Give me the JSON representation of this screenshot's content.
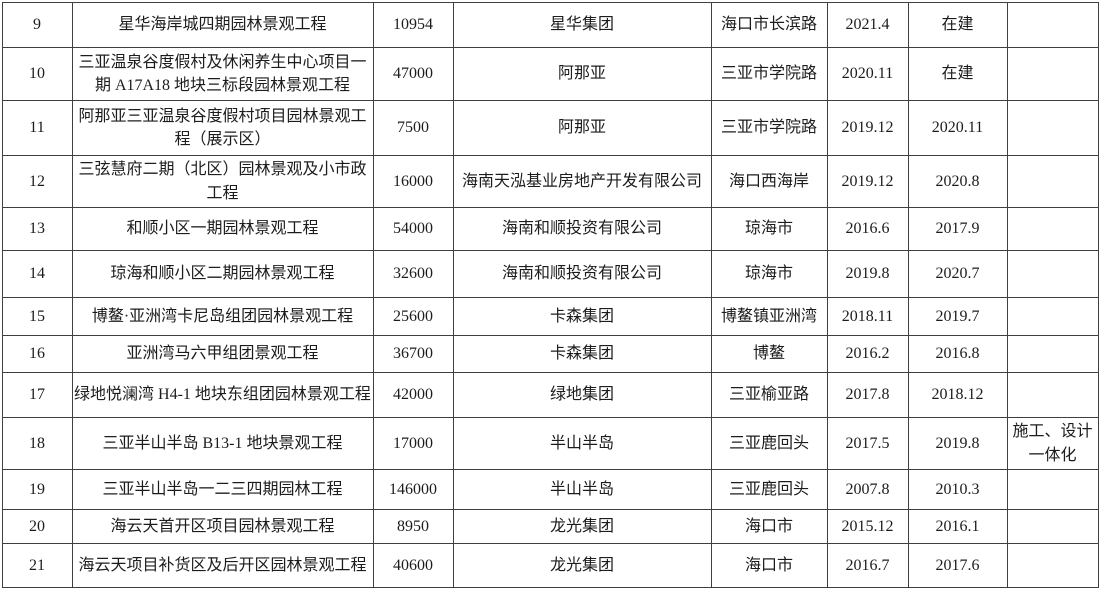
{
  "colors": {
    "background": "#ffffff",
    "text": "#1c1c1c",
    "border": "#3f3f3f"
  },
  "rows": [
    {
      "no": "9",
      "project": "星华海岸城四期园林景观工程",
      "area": "10954",
      "client": "星华集团",
      "location": "海口市长滨路",
      "start": "2021.4",
      "end": "在建",
      "note": ""
    },
    {
      "no": "10",
      "project": "三亚温泉谷度假村及休闲养生中心项目一期 A17A18 地块三标段园林景观工程",
      "area": "47000",
      "client": "阿那亚",
      "location": "三亚市学院路",
      "start": "2020.11",
      "end": "在建",
      "note": ""
    },
    {
      "no": "11",
      "project": "阿那亚三亚温泉谷度假村项目园林景观工程（展示区）",
      "area": "7500",
      "client": "阿那亚",
      "location": "三亚市学院路",
      "start": "2019.12",
      "end": "2020.11",
      "note": ""
    },
    {
      "no": "12",
      "project": "三弦慧府二期（北区）园林景观及小市政工程",
      "area": "16000",
      "client": "海南天泓基业房地产开发有限公司",
      "location": "海口西海岸",
      "start": "2019.12",
      "end": "2020.8",
      "note": ""
    },
    {
      "no": "13",
      "project": "和顺小区一期园林景观工程",
      "area": "54000",
      "client": "海南和顺投资有限公司",
      "location": "琼海市",
      "start": "2016.6",
      "end": "2017.9",
      "note": ""
    },
    {
      "no": "14",
      "project": "琼海和顺小区二期园林景观工程",
      "area": "32600",
      "client": "海南和顺投资有限公司",
      "location": "琼海市",
      "start": "2019.8",
      "end": "2020.7",
      "note": ""
    },
    {
      "no": "15",
      "project": "博鳌·亚洲湾卡尼岛组团园林景观工程",
      "area": "25600",
      "client": "卡森集团",
      "location": "博鳌镇亚洲湾",
      "start": "2018.11",
      "end": "2019.7",
      "note": ""
    },
    {
      "no": "16",
      "project": "亚洲湾马六甲组团景观工程",
      "area": "36700",
      "client": "卡森集团",
      "location": "博鳌",
      "start": "2016.2",
      "end": "2016.8",
      "note": ""
    },
    {
      "no": "17",
      "project": "绿地悦澜湾 H4-1 地块东组团园林景观工程",
      "area": "42000",
      "client": "绿地集团",
      "location": "三亚榆亚路",
      "start": "2017.8",
      "end": "2018.12",
      "note": ""
    },
    {
      "no": "18",
      "project": "三亚半山半岛 B13-1 地块景观工程",
      "area": "17000",
      "client": "半山半岛",
      "location": "三亚鹿回头",
      "start": "2017.5",
      "end": "2019.8",
      "note": "施工、设计一体化"
    },
    {
      "no": "19",
      "project": "三亚半山半岛一二三四期园林工程",
      "area": "146000",
      "client": "半山半岛",
      "location": "三亚鹿回头",
      "start": "2007.8",
      "end": "2010.3",
      "note": ""
    },
    {
      "no": "20",
      "project": "海云天首开区项目园林景观工程",
      "area": "8950",
      "client": "龙光集团",
      "location": "海口市",
      "start": "2015.12",
      "end": "2016.1",
      "note": ""
    },
    {
      "no": "21",
      "project": "海云天项目补货区及后开区园林景观工程",
      "area": "40600",
      "client": "龙光集团",
      "location": "海口市",
      "start": "2016.7",
      "end": "2017.6",
      "note": ""
    }
  ]
}
